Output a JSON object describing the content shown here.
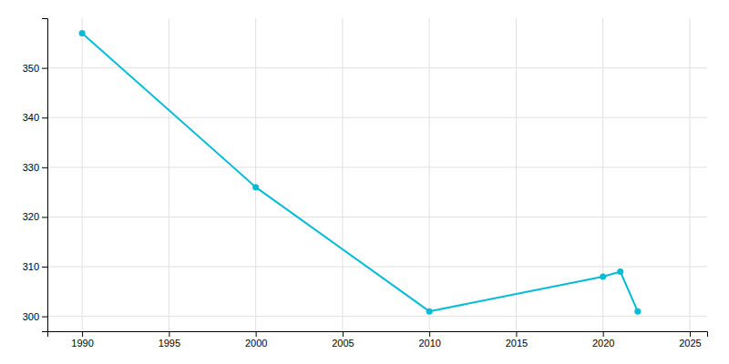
{
  "chart_data": {
    "type": "line",
    "x": [
      1990,
      2000,
      2010,
      2020,
      2021,
      2022
    ],
    "values": [
      357,
      326,
      301,
      308,
      309,
      301
    ],
    "color": "#00bcd4",
    "marker": "circle",
    "xlim": [
      1988,
      2026
    ],
    "ylim": [
      297,
      360
    ],
    "xticks": [
      1990,
      1995,
      2000,
      2005,
      2010,
      2015,
      2020,
      2025
    ],
    "yticks": [
      300,
      310,
      320,
      330,
      340,
      350
    ],
    "grid": true
  }
}
